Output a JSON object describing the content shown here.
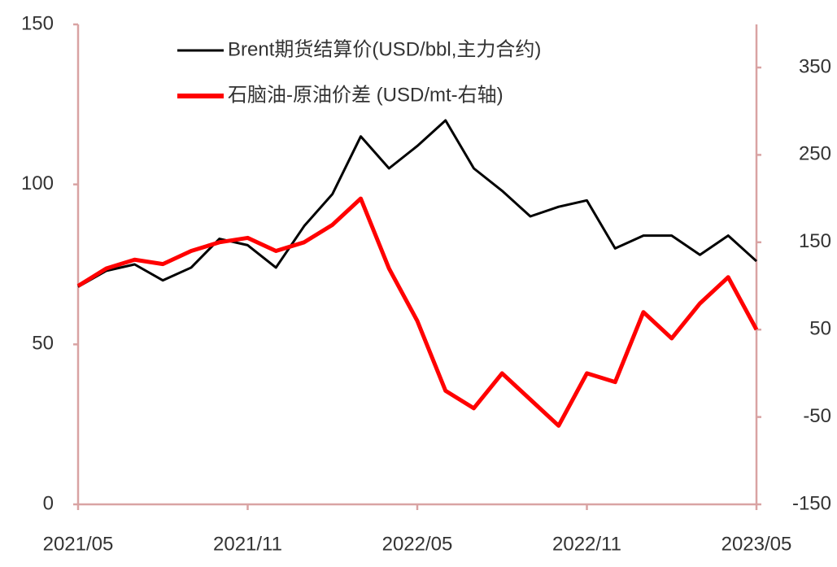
{
  "chart_data": {
    "type": "line",
    "x": [
      "2021/05",
      "2021/06",
      "2021/07",
      "2021/08",
      "2021/09",
      "2021/10",
      "2021/11",
      "2021/12",
      "2022/01",
      "2022/02",
      "2022/03",
      "2022/04",
      "2022/05",
      "2022/06",
      "2022/07",
      "2022/08",
      "2022/09",
      "2022/10",
      "2022/11",
      "2022/12",
      "2023/01",
      "2023/02",
      "2023/03",
      "2023/04",
      "2023/05"
    ],
    "xticks": [
      "2021/05",
      "2021/11",
      "2022/05",
      "2022/11",
      "2023/05"
    ],
    "series": [
      {
        "name": "Brent期货结算价(USD/bbl,主力合约)",
        "color": "#000000",
        "values": [
          68,
          73,
          75,
          70,
          74,
          83,
          81,
          74,
          87,
          97,
          115,
          105,
          112,
          120,
          105,
          98,
          90,
          93,
          95,
          80,
          84,
          84,
          78,
          84,
          76
        ]
      },
      {
        "name": "石脑油-原油价差 (USD/mt-右轴)",
        "color": "#ff0000",
        "axis": "y2",
        "values": [
          100,
          120,
          130,
          125,
          140,
          150,
          155,
          140,
          150,
          170,
          200,
          120,
          60,
          -20,
          -40,
          0,
          -30,
          -60,
          0,
          -10,
          70,
          40,
          80,
          110,
          50
        ]
      }
    ],
    "ylim": [
      0,
      150
    ],
    "yticks": [
      0,
      50,
      100,
      150
    ],
    "y2lim": [
      -150,
      350
    ],
    "y2ticks": [
      -150,
      -50,
      50,
      150,
      250,
      350
    ]
  }
}
